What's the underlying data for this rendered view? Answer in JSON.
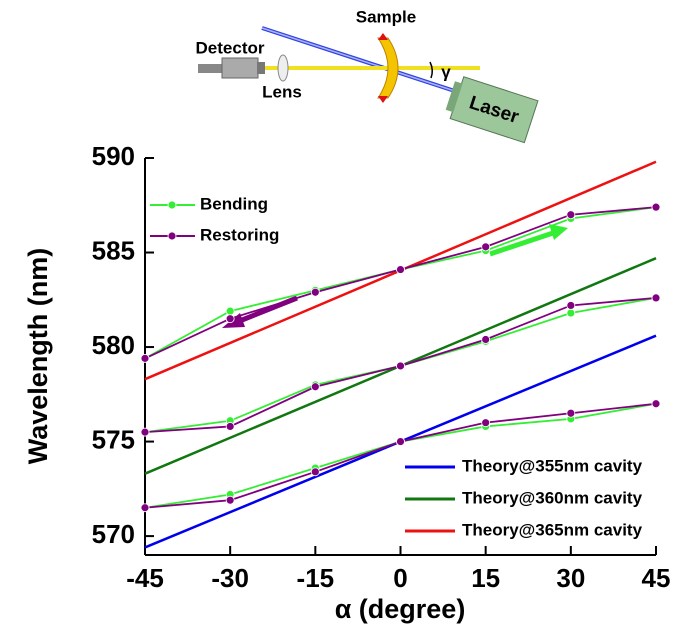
{
  "inset": {
    "detector": "Detector",
    "lens": "Lens",
    "sample": "Sample",
    "laser": "Laser",
    "angle": "γ"
  },
  "chart_data": {
    "type": "line",
    "x_label": "α (degree)",
    "y_label": "Wavelength (nm)",
    "x": [
      -45,
      -30,
      -15,
      0,
      15,
      30,
      45
    ],
    "xlim": [
      -45,
      45
    ],
    "xticks": [
      -45,
      -30,
      -15,
      0,
      15,
      30,
      45
    ],
    "ylim": [
      569,
      590
    ],
    "yticks": [
      570,
      575,
      580,
      585,
      590
    ],
    "series": [
      {
        "name": "Bending",
        "color": "#33ee33",
        "curves": [
          [
            579.4,
            581.9,
            583.0,
            584.1,
            585.1,
            586.8,
            587.4
          ],
          [
            575.5,
            576.1,
            578.0,
            579.0,
            580.3,
            581.8,
            582.6
          ],
          [
            571.5,
            572.2,
            573.6,
            575.0,
            575.8,
            576.2,
            577.0
          ]
        ]
      },
      {
        "name": "Restoring",
        "color": "#800080",
        "curves": [
          [
            579.4,
            581.5,
            582.9,
            584.1,
            585.3,
            587.0,
            587.4
          ],
          [
            575.5,
            575.8,
            577.9,
            579.0,
            580.4,
            582.2,
            582.6
          ],
          [
            571.5,
            571.9,
            573.4,
            575.0,
            576.0,
            576.5,
            577.0
          ]
        ]
      }
    ],
    "theory": [
      {
        "name": "Theory@355nm cavity",
        "color": "#0000ee",
        "x": [
          -45,
          45
        ],
        "values": [
          569.4,
          580.6
        ]
      },
      {
        "name": "Theory@360nm cavity",
        "color": "#117711",
        "x": [
          -45,
          45
        ],
        "values": [
          573.3,
          584.7
        ]
      },
      {
        "name": "Theory@365nm cavity",
        "color": "#ee1111",
        "x": [
          -45,
          45
        ],
        "values": [
          578.3,
          589.8
        ]
      }
    ]
  }
}
